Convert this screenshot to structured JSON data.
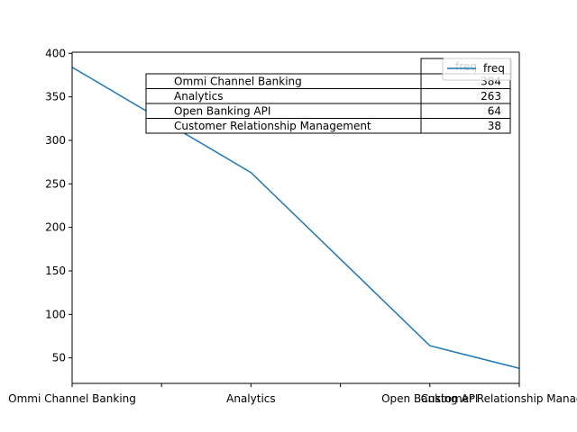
{
  "chart_data": {
    "type": "line",
    "categories": [
      "Ommi Channel Banking",
      "Analytics",
      "Open Banking API",
      "Customer Relationship Management"
    ],
    "x_tick_labels": [
      "Ommi Channel Banking",
      "",
      "Analytics",
      "",
      "Open Banking API",
      "Customer Relationship Management"
    ],
    "series": [
      {
        "name": "freq",
        "values": [
          384,
          263,
          64,
          38
        ],
        "color": "#1f77b4"
      }
    ],
    "title": "",
    "xlabel": "",
    "ylabel": "",
    "ylim": [
      20.7,
      401.3
    ],
    "yticks": [
      50,
      100,
      150,
      200,
      250,
      300,
      350,
      400
    ],
    "legend": {
      "placement": "top-right",
      "entries": [
        "freq"
      ]
    },
    "grid": false,
    "table": {
      "header": "freq",
      "rows": [
        {
          "label": "Ommi Channel Banking",
          "value": "384"
        },
        {
          "label": "Analytics",
          "value": "263"
        },
        {
          "label": "Open Banking API",
          "value": "64"
        },
        {
          "label": "Customer Relationship Management",
          "value": "38"
        }
      ]
    }
  }
}
